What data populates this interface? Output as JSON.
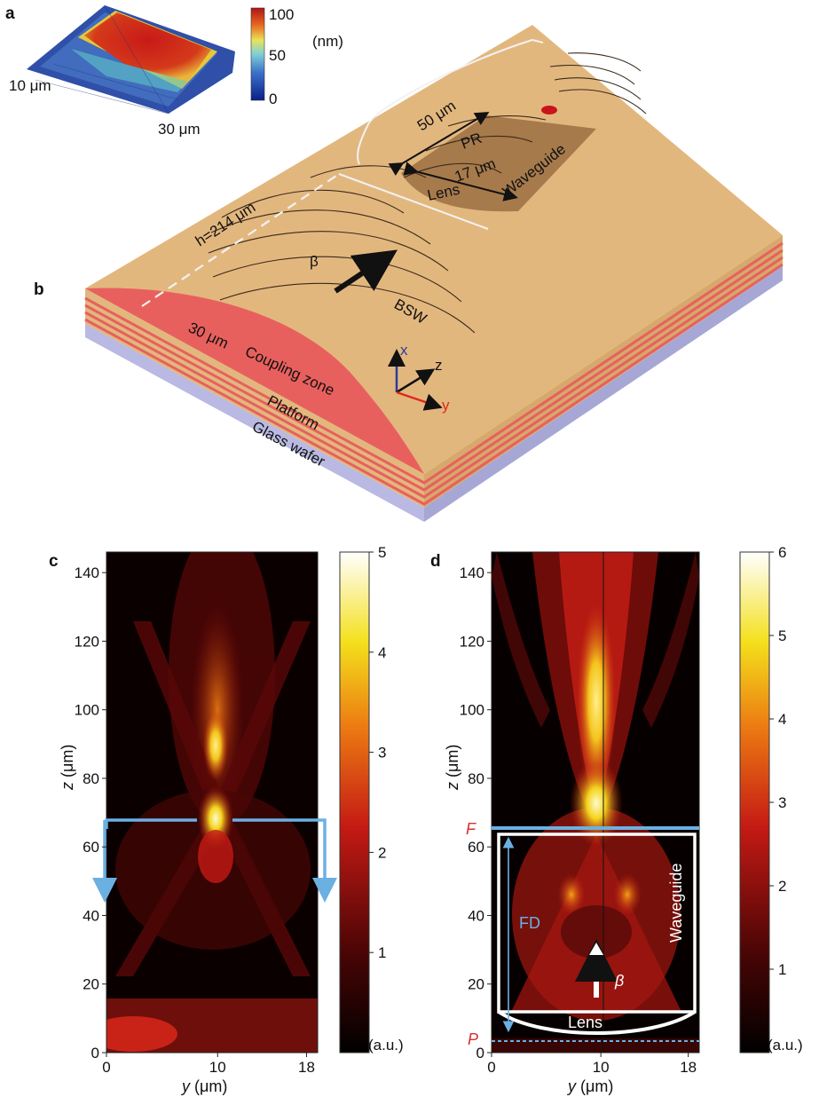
{
  "panels": {
    "a": {
      "letter": "a",
      "size_label_y": "10 μm",
      "size_label_x": "30 μm",
      "colorbar_ticks": [
        "100",
        "50",
        "0"
      ],
      "colorbar_unit": "(nm)"
    },
    "b": {
      "letter": "b",
      "label_h": "h=214 μm",
      "label_50": "50 μm",
      "label_17": "17 μm",
      "label_pr": "PR",
      "label_waveguide": "Waveguide",
      "label_lens": "Lens",
      "label_beta": "β",
      "label_bsw": "BSW",
      "label_30": "30 μm",
      "label_coupling": "Coupling zone",
      "label_platform": "Platform",
      "label_glass": "Glass wafer",
      "axis_x": "x",
      "axis_y": "y",
      "axis_z": "z"
    },
    "c": {
      "letter": "c",
      "colorbar_ticks": [
        "5",
        "4",
        "3",
        "2",
        "1"
      ],
      "colorbar_unit": "(a.u.)"
    },
    "d": {
      "letter": "d",
      "colorbar_ticks": [
        "6",
        "5",
        "4",
        "3",
        "2",
        "1"
      ],
      "colorbar_unit": "(a.u.)",
      "label_F": "F",
      "label_P": "P",
      "label_FD": "FD",
      "label_waveguide": "Waveguide",
      "label_lens": "Lens",
      "label_beta": "β"
    }
  },
  "heatmap_axes": {
    "y_ticks": [
      "0",
      "20",
      "40",
      "60",
      "80",
      "100",
      "120",
      "140"
    ],
    "x_ticks": [
      "0",
      "10",
      "18"
    ],
    "ylabel_var": "z",
    "ylabel_unit": " (μm)",
    "xlabel_var": "y",
    "xlabel_unit": " (μm)"
  },
  "chart_data": [
    {
      "type": "heatmap",
      "panel": "c",
      "x_range": [
        0,
        19
      ],
      "y_range": [
        0,
        146
      ],
      "colorbar_range": [
        0,
        5
      ],
      "features": [
        {
          "name": "focus",
          "y": 10.5,
          "z": 67,
          "intensity": 4.8
        },
        {
          "name": "upper-beam",
          "y": 10,
          "z": 90,
          "intensity": 3.0
        },
        {
          "name": "base-band",
          "y": 3,
          "z": 5,
          "intensity": 2.3
        }
      ]
    },
    {
      "type": "heatmap",
      "panel": "d",
      "x_range": [
        0,
        19
      ],
      "y_range": [
        0,
        146
      ],
      "colorbar_range": [
        0,
        6
      ],
      "features": [
        {
          "name": "focus",
          "y": 10.5,
          "z": 65,
          "intensity": 5.6
        },
        {
          "name": "upper-beam",
          "y": 10.5,
          "z": 100,
          "intensity": 4.5
        },
        {
          "name": "side-lobe-left",
          "y": 7.5,
          "z": 48,
          "intensity": 3.4
        },
        {
          "name": "side-lobe-right",
          "y": 13,
          "z": 48,
          "intensity": 3.4
        }
      ],
      "annotations": {
        "F_z": 65,
        "P_z": 2.5,
        "lens_top_z": 12,
        "waveguide_top_z": 63
      }
    }
  ],
  "colors": {
    "platform": "#e2b77e",
    "coupling": "#e8605e",
    "pr": "#a77a4c",
    "glass": "#b9b9e3",
    "cut_line": "#6cb0e2"
  }
}
